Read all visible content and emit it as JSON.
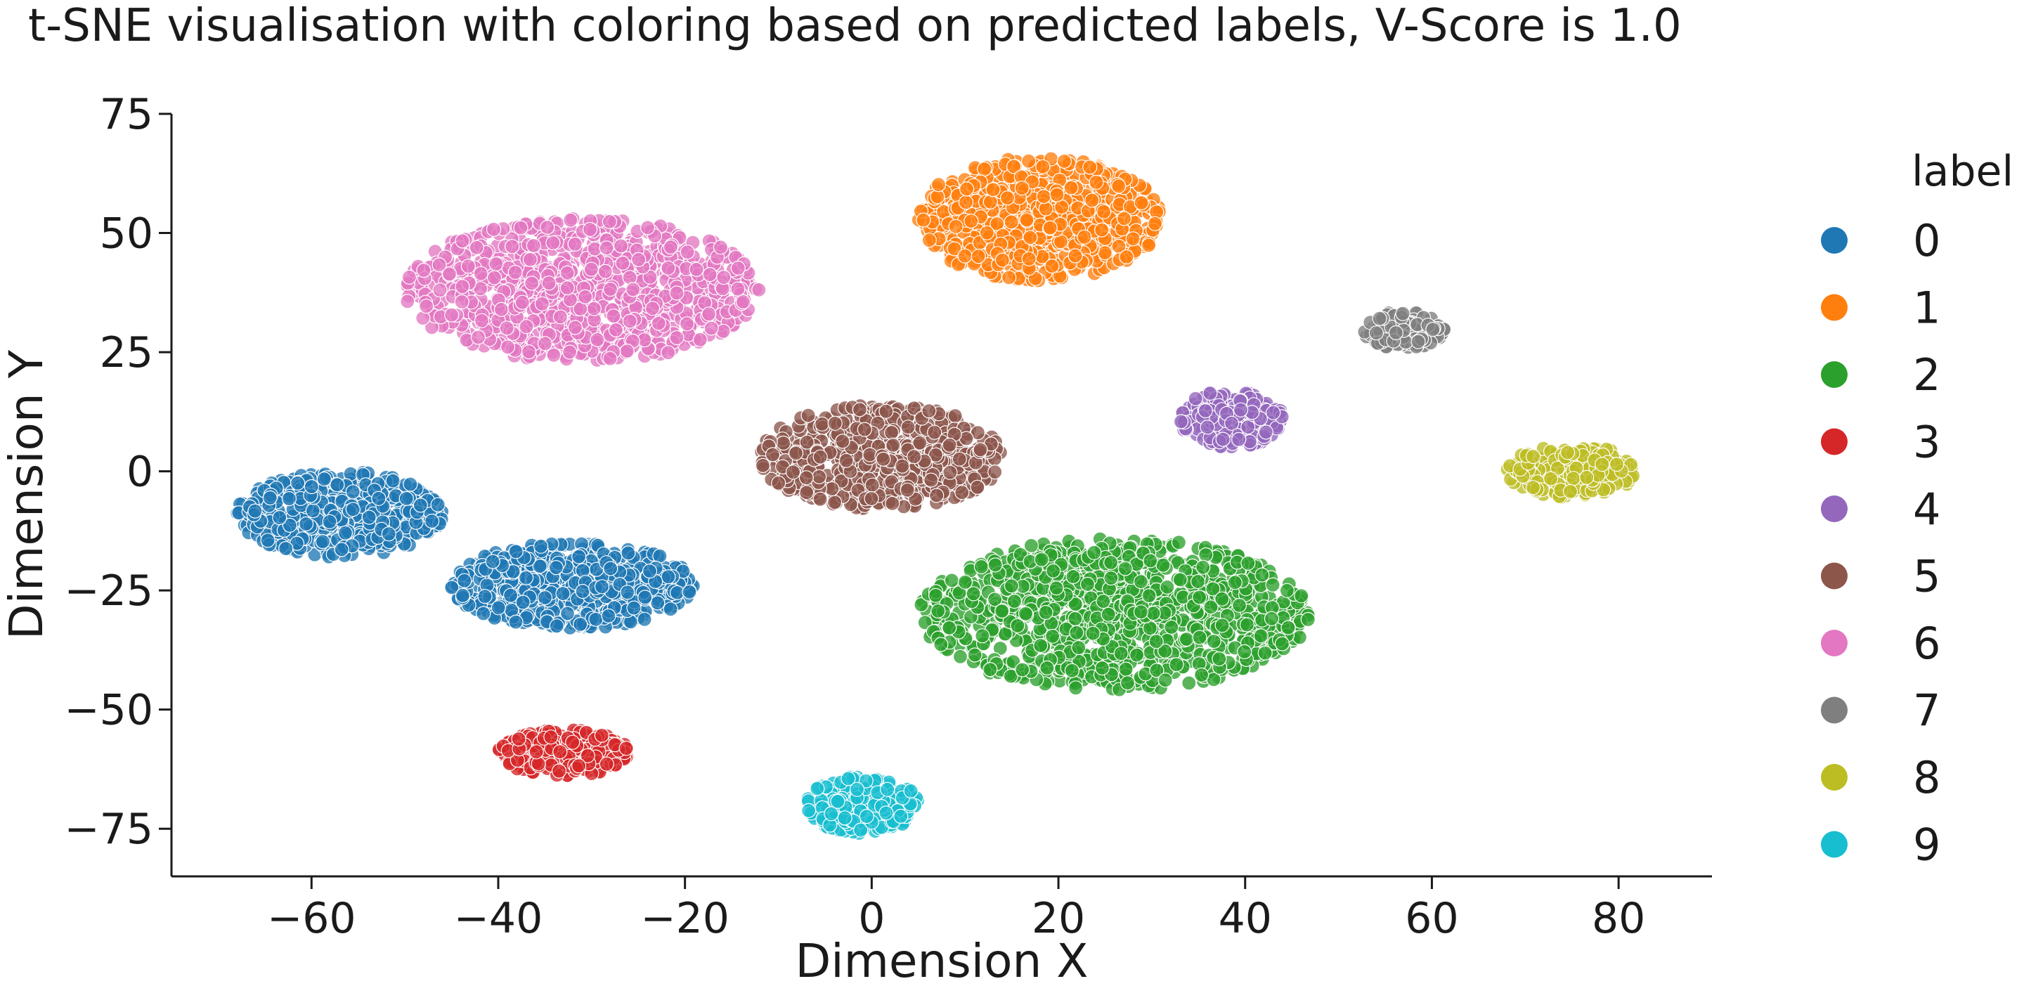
{
  "chart_data": {
    "type": "scatter",
    "title": "t-SNE visualisation with coloring based on predicted labels, V-Score is 1.0",
    "xlabel": "Dimension X",
    "ylabel": "Dimension Y",
    "xlim": [
      -75,
      90
    ],
    "ylim": [
      -85,
      75
    ],
    "xticks": [
      -60,
      -40,
      -20,
      0,
      20,
      40,
      60,
      80
    ],
    "yticks": [
      -75,
      -50,
      -25,
      0,
      25,
      50,
      75
    ],
    "xtick_labels": [
      "−60",
      "−40",
      "−20",
      "0",
      "20",
      "40",
      "60",
      "80"
    ],
    "ytick_labels": [
      "−75",
      "−50",
      "−25",
      "0",
      "25",
      "50",
      "75"
    ],
    "grid": false,
    "legend": {
      "title": "label",
      "placement": "right-outside"
    },
    "series": [
      {
        "name": "0",
        "color": "#1f77b4",
        "clusters": [
          {
            "cx": -57,
            "cy": -9,
            "rx": 11,
            "ry": 9,
            "n": 520
          },
          {
            "cx": -32,
            "cy": -24,
            "rx": 13,
            "ry": 9,
            "n": 600
          }
        ]
      },
      {
        "name": "1",
        "color": "#ff7f0e",
        "clusters": [
          {
            "cx": 18,
            "cy": 53,
            "rx": 13,
            "ry": 13,
            "n": 700
          }
        ]
      },
      {
        "name": "2",
        "color": "#2ca02c",
        "clusters": [
          {
            "cx": 26,
            "cy": -30,
            "rx": 21,
            "ry": 16,
            "n": 1100
          }
        ]
      },
      {
        "name": "3",
        "color": "#d62728",
        "clusters": [
          {
            "cx": -33,
            "cy": -59,
            "rx": 7,
            "ry": 5,
            "n": 250
          }
        ]
      },
      {
        "name": "4",
        "color": "#9467bd",
        "clusters": [
          {
            "cx": 38.5,
            "cy": 11,
            "rx": 5.5,
            "ry": 6,
            "n": 220
          }
        ]
      },
      {
        "name": "5",
        "color": "#8c564b",
        "clusters": [
          {
            "cx": 1,
            "cy": 3,
            "rx": 13,
            "ry": 11,
            "n": 650
          }
        ]
      },
      {
        "name": "6",
        "color": "#e377c2",
        "clusters": [
          {
            "cx": -31,
            "cy": 38,
            "rx": 19,
            "ry": 15,
            "n": 1000
          }
        ]
      },
      {
        "name": "7",
        "color": "#7f7f7f",
        "clusters": [
          {
            "cx": 57,
            "cy": 29.5,
            "rx": 4.5,
            "ry": 4,
            "n": 160
          }
        ]
      },
      {
        "name": "8",
        "color": "#bcbd22",
        "clusters": [
          {
            "cx": 75,
            "cy": 0,
            "rx": 7,
            "ry": 5.5,
            "n": 240
          }
        ]
      },
      {
        "name": "9",
        "color": "#17becf",
        "clusters": [
          {
            "cx": -1,
            "cy": -70,
            "rx": 6,
            "ry": 6,
            "n": 250
          }
        ]
      }
    ]
  }
}
